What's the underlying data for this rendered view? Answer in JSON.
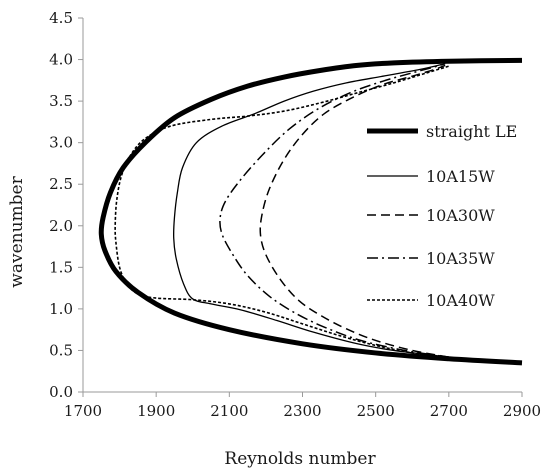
{
  "chart_data": {
    "type": "line",
    "xlabel": "Reynolds number",
    "ylabel": "wavenumber",
    "xlim": [
      1700,
      2900
    ],
    "ylim": [
      0.0,
      4.5
    ],
    "x_ticks": [
      "1700",
      "1900",
      "2100",
      "2300",
      "2500",
      "2700",
      "2900"
    ],
    "y_ticks": [
      "0.0",
      "0.5",
      "1.0",
      "1.5",
      "2.0",
      "2.5",
      "3.0",
      "3.5",
      "4.0",
      "4.5"
    ],
    "grid": false,
    "legend_position": "right",
    "series": [
      {
        "name": "straight LE",
        "style": "thick",
        "points": [
          [
            2900,
            0.35
          ],
          [
            2700,
            0.4
          ],
          [
            2500,
            0.47
          ],
          [
            2300,
            0.58
          ],
          [
            2100,
            0.75
          ],
          [
            1950,
            0.95
          ],
          [
            1850,
            1.2
          ],
          [
            1790,
            1.45
          ],
          [
            1760,
            1.7
          ],
          [
            1750,
            1.9
          ],
          [
            1755,
            2.1
          ],
          [
            1775,
            2.4
          ],
          [
            1810,
            2.7
          ],
          [
            1870,
            3.0
          ],
          [
            1950,
            3.3
          ],
          [
            2050,
            3.52
          ],
          [
            2150,
            3.68
          ],
          [
            2250,
            3.79
          ],
          [
            2350,
            3.87
          ],
          [
            2450,
            3.93
          ],
          [
            2550,
            3.96
          ],
          [
            2700,
            3.98
          ],
          [
            2900,
            3.99
          ]
        ]
      },
      {
        "name": "10A15W",
        "style": "solid",
        "points": [
          [
            2700,
            0.42
          ],
          [
            2550,
            0.5
          ],
          [
            2450,
            0.58
          ],
          [
            2330,
            0.72
          ],
          [
            2230,
            0.86
          ],
          [
            2130,
            0.99
          ],
          [
            2050,
            1.06
          ],
          [
            2000,
            1.12
          ],
          [
            1975,
            1.3
          ],
          [
            1955,
            1.6
          ],
          [
            1948,
            1.85
          ],
          [
            1950,
            2.1
          ],
          [
            1958,
            2.4
          ],
          [
            1972,
            2.7
          ],
          [
            2010,
            3.0
          ],
          [
            2080,
            3.2
          ],
          [
            2170,
            3.35
          ],
          [
            2250,
            3.5
          ],
          [
            2330,
            3.62
          ],
          [
            2420,
            3.72
          ],
          [
            2520,
            3.8
          ],
          [
            2620,
            3.88
          ],
          [
            2680,
            3.94
          ]
        ]
      },
      {
        "name": "10A30W",
        "style": "dash",
        "points": [
          [
            2700,
            0.42
          ],
          [
            2600,
            0.5
          ],
          [
            2500,
            0.62
          ],
          [
            2420,
            0.76
          ],
          [
            2350,
            0.92
          ],
          [
            2290,
            1.1
          ],
          [
            2240,
            1.35
          ],
          [
            2200,
            1.65
          ],
          [
            2185,
            1.9
          ],
          [
            2190,
            2.15
          ],
          [
            2210,
            2.45
          ],
          [
            2250,
            2.8
          ],
          [
            2300,
            3.1
          ],
          [
            2360,
            3.35
          ],
          [
            2440,
            3.55
          ],
          [
            2520,
            3.7
          ],
          [
            2600,
            3.8
          ],
          [
            2660,
            3.88
          ],
          [
            2690,
            3.93
          ]
        ]
      },
      {
        "name": "10A35W",
        "style": "dashdot",
        "points": [
          [
            2700,
            0.42
          ],
          [
            2580,
            0.5
          ],
          [
            2460,
            0.62
          ],
          [
            2360,
            0.78
          ],
          [
            2280,
            0.95
          ],
          [
            2210,
            1.15
          ],
          [
            2150,
            1.4
          ],
          [
            2110,
            1.65
          ],
          [
            2080,
            1.9
          ],
          [
            2075,
            2.1
          ],
          [
            2090,
            2.3
          ],
          [
            2130,
            2.55
          ],
          [
            2190,
            2.85
          ],
          [
            2260,
            3.15
          ],
          [
            2340,
            3.4
          ],
          [
            2430,
            3.6
          ],
          [
            2520,
            3.74
          ],
          [
            2600,
            3.84
          ],
          [
            2660,
            3.91
          ],
          [
            2690,
            3.95
          ]
        ]
      },
      {
        "name": "10A40W",
        "style": "dot",
        "points": [
          [
            2700,
            0.4
          ],
          [
            2600,
            0.47
          ],
          [
            2500,
            0.56
          ],
          [
            2400,
            0.68
          ],
          [
            2300,
            0.82
          ],
          [
            2200,
            0.96
          ],
          [
            2100,
            1.06
          ],
          [
            2000,
            1.11
          ],
          [
            1900,
            1.13
          ],
          [
            1850,
            1.18
          ],
          [
            1820,
            1.3
          ],
          [
            1800,
            1.5
          ],
          [
            1790,
            1.8
          ],
          [
            1788,
            2.0
          ],
          [
            1792,
            2.3
          ],
          [
            1805,
            2.6
          ],
          [
            1830,
            2.85
          ],
          [
            1870,
            3.05
          ],
          [
            1940,
            3.2
          ],
          [
            2050,
            3.28
          ],
          [
            2150,
            3.32
          ],
          [
            2250,
            3.38
          ],
          [
            2350,
            3.48
          ],
          [
            2450,
            3.6
          ],
          [
            2550,
            3.72
          ],
          [
            2640,
            3.84
          ],
          [
            2700,
            3.92
          ]
        ]
      }
    ]
  }
}
